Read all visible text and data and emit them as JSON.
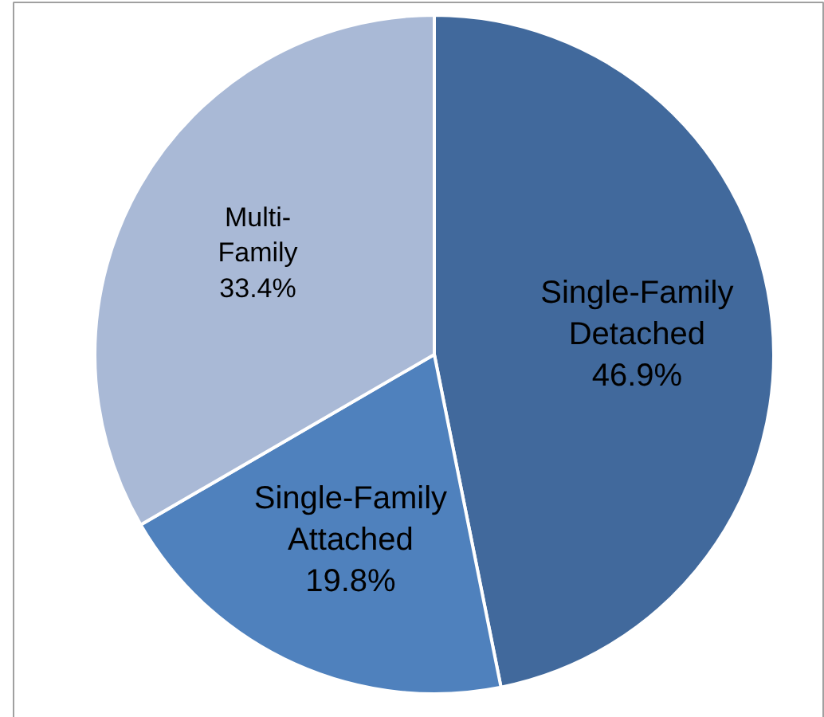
{
  "chart_data": {
    "type": "pie",
    "categories": [
      "Single-Family Detached",
      "Single-Family Attached",
      "Multi-Family"
    ],
    "values": [
      46.9,
      19.8,
      33.4
    ],
    "colors": [
      "#41699c",
      "#4f81bd",
      "#a9b9d6"
    ],
    "value_labels": [
      "46.9%",
      "19.8%",
      "33.4%"
    ]
  }
}
